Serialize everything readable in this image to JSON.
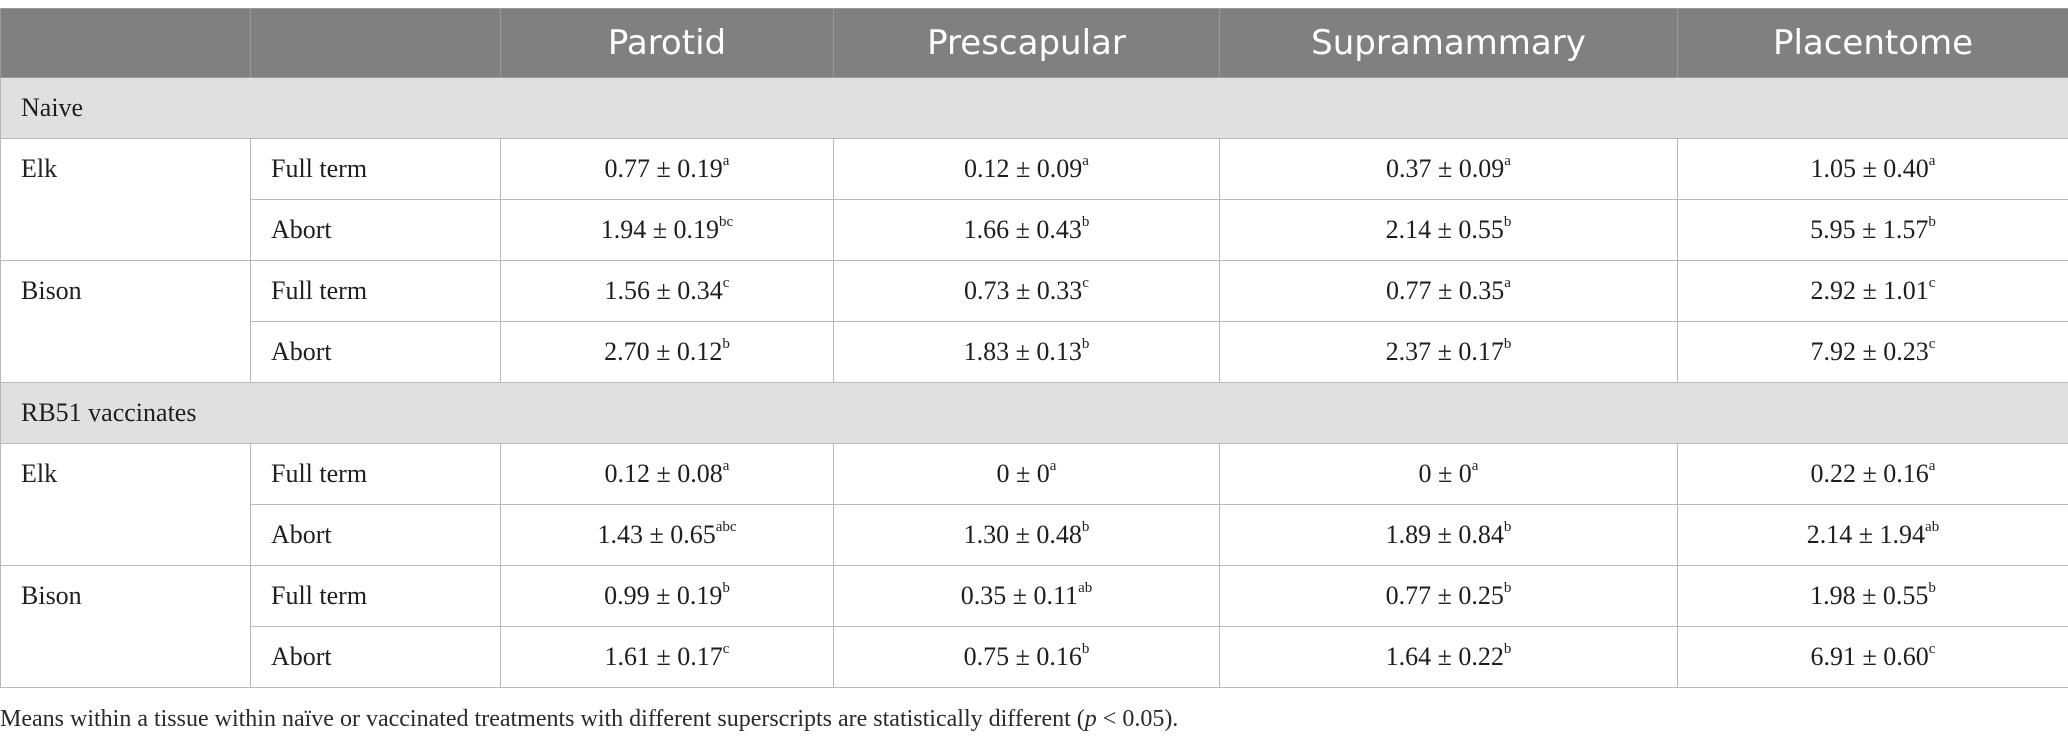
{
  "header": {
    "blank1": "",
    "blank2": "",
    "columns": [
      "Parotid",
      "Prescapular",
      "Supramammary",
      "Placentome"
    ]
  },
  "sections": [
    {
      "label": "Naive",
      "groups": [
        {
          "species": "Elk",
          "rows": [
            {
              "outcome": "Full term",
              "cells": [
                {
                  "value": "0.77 ± 0.19",
                  "sup": "a"
                },
                {
                  "value": "0.12 ± 0.09",
                  "sup": "a"
                },
                {
                  "value": "0.37 ± 0.09",
                  "sup": "a"
                },
                {
                  "value": "1.05 ± 0.40",
                  "sup": "a"
                }
              ]
            },
            {
              "outcome": "Abort",
              "cells": [
                {
                  "value": "1.94 ± 0.19",
                  "sup": "bc"
                },
                {
                  "value": "1.66 ± 0.43",
                  "sup": "b"
                },
                {
                  "value": "2.14 ± 0.55",
                  "sup": "b"
                },
                {
                  "value": "5.95 ± 1.57",
                  "sup": "b"
                }
              ]
            }
          ]
        },
        {
          "species": "Bison",
          "rows": [
            {
              "outcome": "Full term",
              "cells": [
                {
                  "value": "1.56 ± 0.34",
                  "sup": "c"
                },
                {
                  "value": "0.73 ± 0.33",
                  "sup": "c"
                },
                {
                  "value": "0.77 ± 0.35",
                  "sup": "a"
                },
                {
                  "value": "2.92 ± 1.01",
                  "sup": "c"
                }
              ]
            },
            {
              "outcome": "Abort",
              "cells": [
                {
                  "value": "2.70 ± 0.12",
                  "sup": "b"
                },
                {
                  "value": "1.83 ± 0.13",
                  "sup": "b"
                },
                {
                  "value": "2.37 ± 0.17",
                  "sup": "b"
                },
                {
                  "value": "7.92 ± 0.23",
                  "sup": "c"
                }
              ]
            }
          ]
        }
      ]
    },
    {
      "label": "RB51 vaccinates",
      "groups": [
        {
          "species": "Elk",
          "rows": [
            {
              "outcome": "Full term",
              "cells": [
                {
                  "value": "0.12 ± 0.08",
                  "sup": "a"
                },
                {
                  "value": "0 ± 0",
                  "sup": "a"
                },
                {
                  "value": "0 ± 0",
                  "sup": "a"
                },
                {
                  "value": "0.22 ± 0.16",
                  "sup": "a"
                }
              ]
            },
            {
              "outcome": "Abort",
              "cells": [
                {
                  "value": "1.43 ± 0.65",
                  "sup": "abc"
                },
                {
                  "value": "1.30 ± 0.48",
                  "sup": "b"
                },
                {
                  "value": "1.89 ± 0.84",
                  "sup": "b"
                },
                {
                  "value": "2.14 ± 1.94",
                  "sup": "ab"
                }
              ]
            }
          ]
        },
        {
          "species": "Bison",
          "rows": [
            {
              "outcome": "Full term",
              "cells": [
                {
                  "value": "0.99 ± 0.19",
                  "sup": "b"
                },
                {
                  "value": "0.35 ± 0.11",
                  "sup": "ab"
                },
                {
                  "value": "0.77 ± 0.25",
                  "sup": "b"
                },
                {
                  "value": "1.98 ± 0.55",
                  "sup": "b"
                }
              ]
            },
            {
              "outcome": "Abort",
              "cells": [
                {
                  "value": "1.61 ± 0.17",
                  "sup": "c"
                },
                {
                  "value": "0.75 ± 0.16",
                  "sup": "b"
                },
                {
                  "value": "1.64 ± 0.22",
                  "sup": "b"
                },
                {
                  "value": "6.91 ± 0.60",
                  "sup": "c"
                }
              ]
            }
          ]
        }
      ]
    }
  ],
  "footnote": {
    "before": "Means within a tissue within naïve or vaccinated treatments with different superscripts are statistically different (",
    "italic": "p",
    "after": " < 0.05)."
  }
}
